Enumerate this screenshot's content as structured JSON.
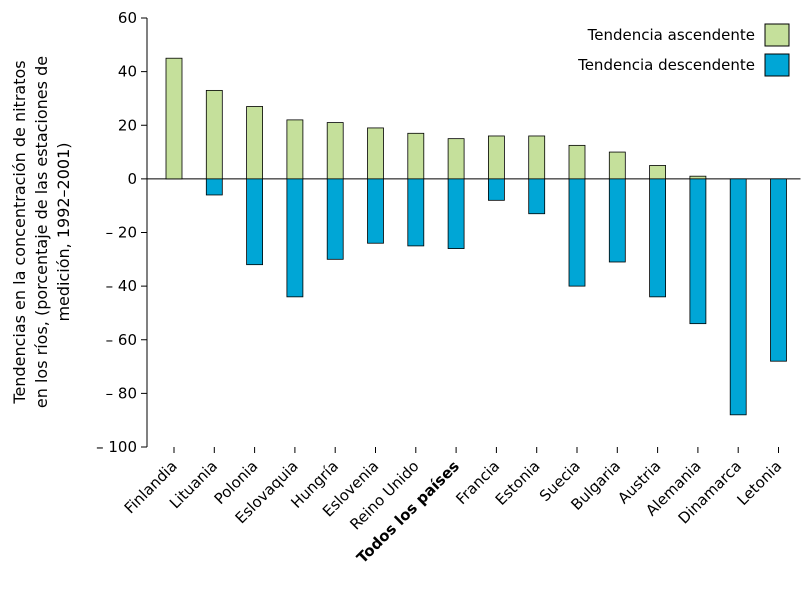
{
  "chart_data": {
    "type": "bar",
    "title": "",
    "xlabel": "",
    "ylabel_lines": [
      "Tendencias en la concentración de nitratos",
      "en los ríos, (porcentaje de las estaciones de",
      "medición, 1992–2001)"
    ],
    "ylim": [
      -100,
      60
    ],
    "yticks": [
      60,
      40,
      20,
      0,
      -20,
      -40,
      -60,
      -80,
      -100
    ],
    "ytick_labels": [
      "60",
      "40",
      "20",
      "0",
      "– 20",
      "– 40",
      "– 60",
      "– 80",
      "– 100"
    ],
    "categories": [
      "Finlandia",
      "Lituania",
      "Polonia",
      "Eslovaquia",
      "Hungría",
      "Eslovenia",
      "Reino Unido",
      "Todos los países",
      "Francia",
      "Estonia",
      "Suecia",
      "Bulgaria",
      "Austria",
      "Alemania",
      "Dinamarca",
      "Letonia"
    ],
    "highlight_category": "Todos los países",
    "series": [
      {
        "name": "Tendencia ascendente",
        "color": "#c5e09b",
        "values": [
          45,
          33,
          27,
          22,
          21,
          19,
          17,
          15,
          16,
          16,
          12.5,
          10,
          5,
          1,
          0,
          0
        ]
      },
      {
        "name": "Tendencia descendente",
        "color": "#00a6d6",
        "values": [
          0,
          -6,
          -32,
          -44,
          -30,
          -24,
          -25,
          -26,
          -8,
          -13,
          -40,
          -31,
          -44,
          -54,
          -88,
          -68
        ]
      }
    ],
    "legend_position": "top-right",
    "grid": false
  }
}
